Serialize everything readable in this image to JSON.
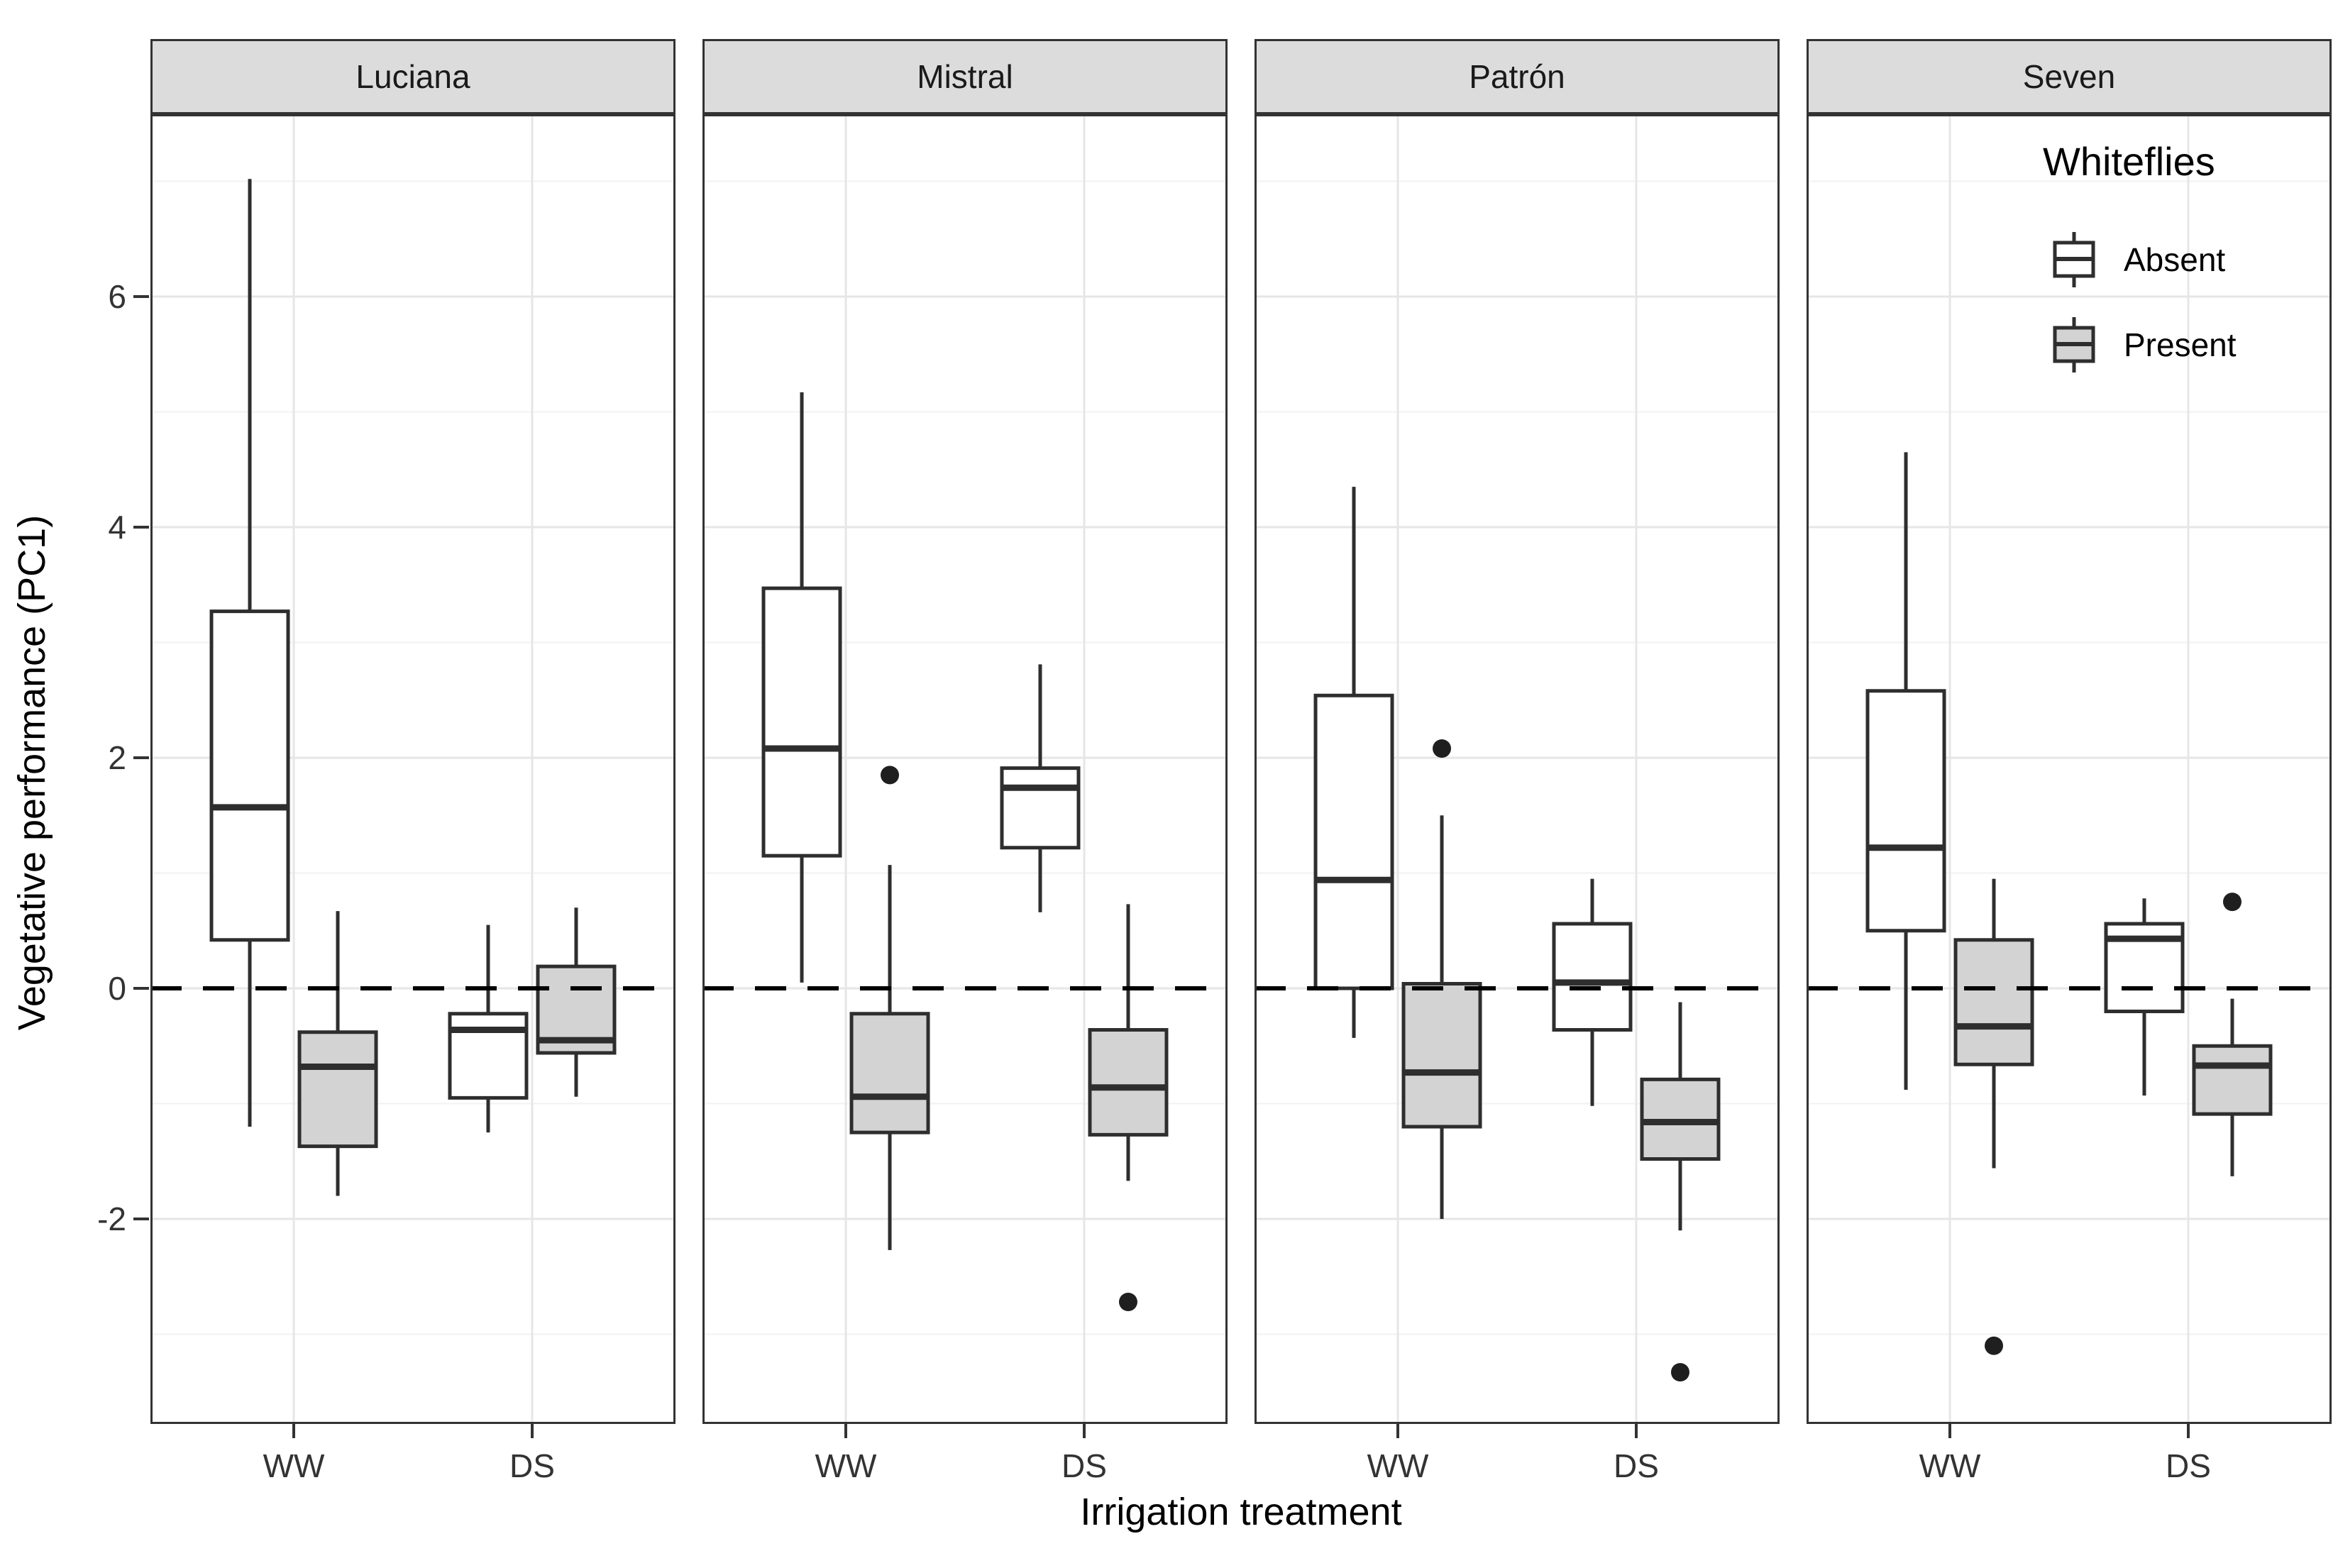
{
  "figure": {
    "x_axis_title": "Irrigation treatment",
    "y_axis_title": "Vegetative performance (PC1)"
  },
  "legend": {
    "title": "Whiteflies",
    "items": [
      {
        "label": "Absent",
        "fill": "#ffffff"
      },
      {
        "label": "Present",
        "fill": "#d3d3d3"
      }
    ]
  },
  "colors": {
    "strip_fill": "#dcdcdc",
    "panel_border": "#333333",
    "box_stroke": "#2e2e2e",
    "present_fill": "#d3d3d3",
    "absent_fill": "#ffffff",
    "major_grid": "#e6e6e6",
    "minor_grid": "#f2f2f2",
    "reference_line": "#000000",
    "outlier": "#1f1f1f"
  },
  "chart_data": {
    "type": "boxplot",
    "facets": [
      "Luciana",
      "Mistral",
      "Patrón",
      "Seven"
    ],
    "x_categories": [
      "WW",
      "DS"
    ],
    "series": [
      "Absent",
      "Present"
    ],
    "xlabel": "Irrigation treatment",
    "ylabel": "Vegetative performance (PC1)",
    "ylim": [
      -3.8,
      7.6
    ],
    "y_major_ticks": [
      6,
      4,
      2,
      0,
      -2
    ],
    "y_tick_labels": [
      "6",
      "4",
      "2",
      "0",
      "-2"
    ],
    "y_minor_gridlines": [
      7,
      5,
      3,
      1,
      -1,
      -3
    ],
    "reference_line": {
      "y": 0,
      "style": "dashed"
    },
    "legend_title": "Whiteflies",
    "boxes": [
      {
        "facet": "Luciana",
        "treatment": "WW",
        "whiteflies": "Absent",
        "whisker_low": -1.2,
        "q1": 0.42,
        "median": 1.57,
        "q3": 3.27,
        "whisker_high": 7.02,
        "outliers": []
      },
      {
        "facet": "Luciana",
        "treatment": "WW",
        "whiteflies": "Present",
        "whisker_low": -1.8,
        "q1": -1.37,
        "median": -0.68,
        "q3": -0.38,
        "whisker_high": 0.67,
        "outliers": []
      },
      {
        "facet": "Luciana",
        "treatment": "DS",
        "whiteflies": "Absent",
        "whisker_low": -1.25,
        "q1": -0.95,
        "median": -0.36,
        "q3": -0.22,
        "whisker_high": 0.55,
        "outliers": []
      },
      {
        "facet": "Luciana",
        "treatment": "DS",
        "whiteflies": "Present",
        "whisker_low": -0.94,
        "q1": -0.56,
        "median": -0.45,
        "q3": 0.19,
        "whisker_high": 0.7,
        "outliers": []
      },
      {
        "facet": "Mistral",
        "treatment": "WW",
        "whiteflies": "Absent",
        "whisker_low": 0.05,
        "q1": 1.15,
        "median": 2.08,
        "q3": 3.47,
        "whisker_high": 5.17,
        "outliers": []
      },
      {
        "facet": "Mistral",
        "treatment": "WW",
        "whiteflies": "Present",
        "whisker_low": -2.27,
        "q1": -1.25,
        "median": -0.94,
        "q3": -0.22,
        "whisker_high": 1.07,
        "outliers": [
          1.85
        ]
      },
      {
        "facet": "Mistral",
        "treatment": "DS",
        "whiteflies": "Absent",
        "whisker_low": 0.66,
        "q1": 1.22,
        "median": 1.74,
        "q3": 1.91,
        "whisker_high": 2.81,
        "outliers": []
      },
      {
        "facet": "Mistral",
        "treatment": "DS",
        "whiteflies": "Present",
        "whisker_low": -1.67,
        "q1": -1.27,
        "median": -0.86,
        "q3": -0.36,
        "whisker_high": 0.73,
        "outliers": [
          -2.72
        ]
      },
      {
        "facet": "Patrón",
        "treatment": "WW",
        "whiteflies": "Absent",
        "whisker_low": -0.43,
        "q1": 0.0,
        "median": 0.94,
        "q3": 2.54,
        "whisker_high": 4.35,
        "outliers": []
      },
      {
        "facet": "Patrón",
        "treatment": "WW",
        "whiteflies": "Present",
        "whisker_low": -2.0,
        "q1": -1.2,
        "median": -0.73,
        "q3": 0.04,
        "whisker_high": 1.5,
        "outliers": [
          2.08
        ]
      },
      {
        "facet": "Patrón",
        "treatment": "DS",
        "whiteflies": "Absent",
        "whisker_low": -1.02,
        "q1": -0.36,
        "median": 0.05,
        "q3": 0.56,
        "whisker_high": 0.95,
        "outliers": []
      },
      {
        "facet": "Patrón",
        "treatment": "DS",
        "whiteflies": "Present",
        "whisker_low": -2.1,
        "q1": -1.48,
        "median": -1.16,
        "q3": -0.79,
        "whisker_high": -0.12,
        "outliers": [
          -3.33
        ]
      },
      {
        "facet": "Seven",
        "treatment": "WW",
        "whiteflies": "Absent",
        "whisker_low": -0.88,
        "q1": 0.5,
        "median": 1.22,
        "q3": 2.58,
        "whisker_high": 4.65,
        "outliers": []
      },
      {
        "facet": "Seven",
        "treatment": "WW",
        "whiteflies": "Present",
        "whisker_low": -1.56,
        "q1": -0.66,
        "median": -0.33,
        "q3": 0.42,
        "whisker_high": 0.95,
        "outliers": [
          -3.1
        ]
      },
      {
        "facet": "Seven",
        "treatment": "DS",
        "whiteflies": "Absent",
        "whisker_low": -0.93,
        "q1": -0.2,
        "median": 0.43,
        "q3": 0.56,
        "whisker_high": 0.78,
        "outliers": []
      },
      {
        "facet": "Seven",
        "treatment": "DS",
        "whiteflies": "Present",
        "whisker_low": -1.63,
        "q1": -1.09,
        "median": -0.67,
        "q3": -0.5,
        "whisker_high": -0.09,
        "outliers": [
          0.75
        ]
      }
    ]
  }
}
